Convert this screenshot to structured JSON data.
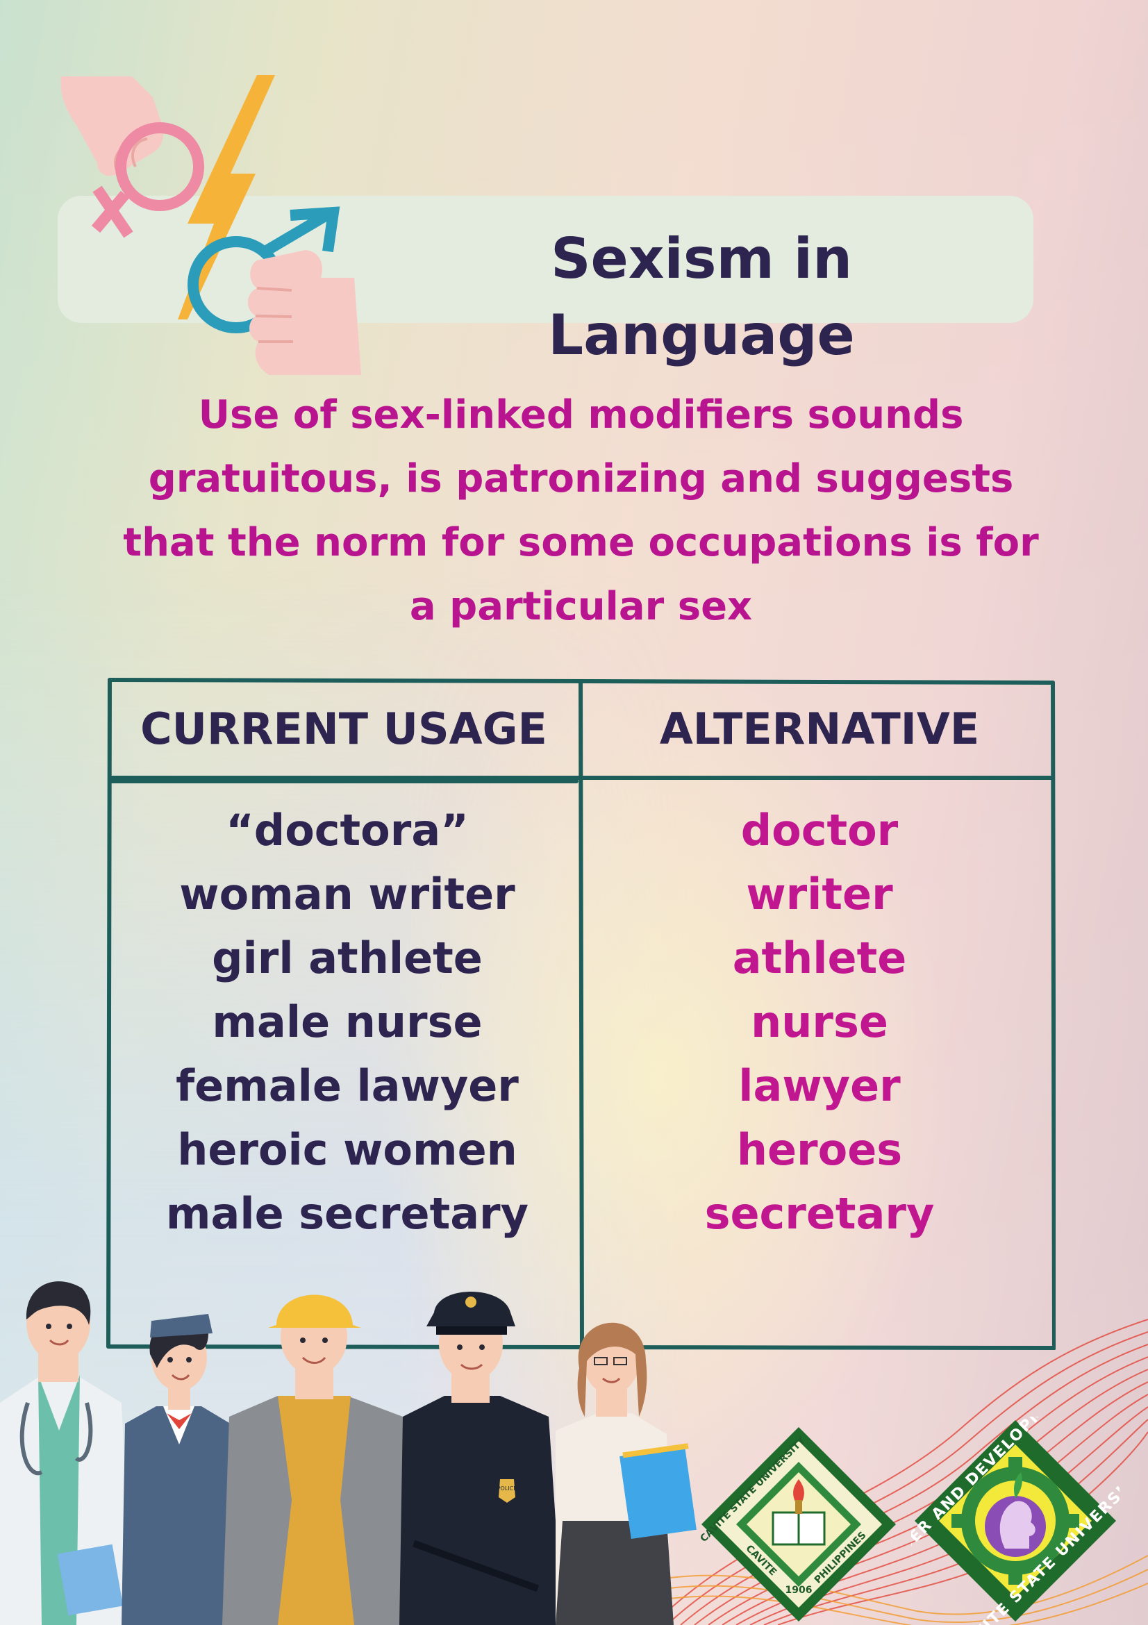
{
  "title": "Sexism in Language",
  "subtitle": "Use of sex-linked modifiers sounds gratuitous, is patronizing and suggests that the norm for some occupations is for a particular sex",
  "table": {
    "headers": [
      "CURRENT USAGE",
      "ALTERNATIVE"
    ],
    "rows": [
      {
        "current": "“doctora”",
        "alternative": "doctor"
      },
      {
        "current": "woman writer",
        "alternative": "writer"
      },
      {
        "current": "girl athlete",
        "alternative": "athlete"
      },
      {
        "current": "male nurse",
        "alternative": "nurse"
      },
      {
        "current": "female lawyer",
        "alternative": "lawyer"
      },
      {
        "current": "heroic women",
        "alternative": "heroes"
      },
      {
        "current": "male secretary",
        "alternative": "secretary"
      }
    ]
  },
  "logos": {
    "cvsu_top": "CAVITE STATE UNIVERSITY",
    "cvsu_bottom": "CAVITE",
    "cvsu_country": "PHILIPPINES",
    "cvsu_year": "1906",
    "gad_top": "GENDER AND DEVELOPMENT",
    "gad_bottom": "CAVITE STATE UNIVERSITY"
  },
  "people_badge": "POLICE",
  "colors": {
    "title": "#2e2450",
    "accent_magenta": "#c0168f",
    "table_border": "#1d5e5a",
    "title_pill": "#e3ecde"
  },
  "icons": [
    "female-symbol-icon",
    "male-symbol-icon",
    "lightning-bolt-icon",
    "hand-icon"
  ]
}
